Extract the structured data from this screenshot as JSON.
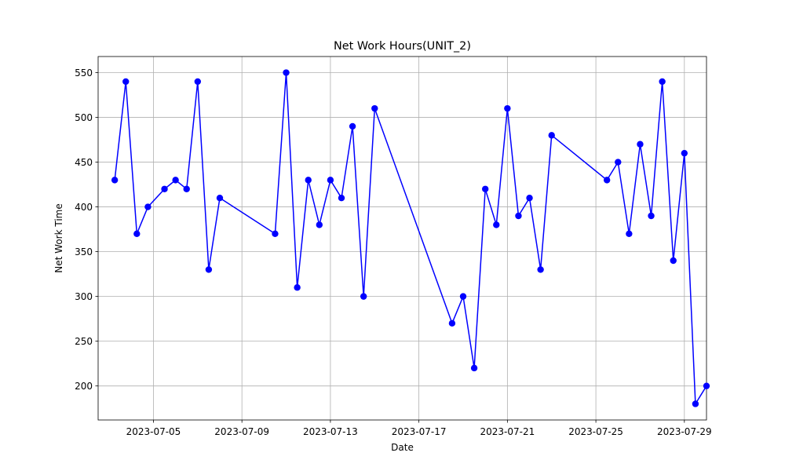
{
  "chart_data": {
    "type": "line",
    "title": "Net Work Hours(UNIT_2)",
    "xlabel": "Date",
    "ylabel": "Net Work Time",
    "x_type": "date",
    "xlim": [
      "2023-07-02T12:00",
      "2023-07-30T00:00"
    ],
    "ylim": [
      162,
      568
    ],
    "x_ticks": [
      "2023-07-05",
      "2023-07-09",
      "2023-07-13",
      "2023-07-17",
      "2023-07-21",
      "2023-07-25",
      "2023-07-29"
    ],
    "y_ticks": [
      200,
      250,
      300,
      350,
      400,
      450,
      500,
      550
    ],
    "grid": true,
    "legend": "none",
    "colors": {
      "series": "#0000ff"
    },
    "series": [
      {
        "marker": "circle",
        "points": [
          {
            "x": "2023-07-03T06:00",
            "y": 430
          },
          {
            "x": "2023-07-03T18:00",
            "y": 540
          },
          {
            "x": "2023-07-04T06:00",
            "y": 370
          },
          {
            "x": "2023-07-04T18:00",
            "y": 400
          },
          {
            "x": "2023-07-05T12:00",
            "y": 420
          },
          {
            "x": "2023-07-06T00:00",
            "y": 430
          },
          {
            "x": "2023-07-06T12:00",
            "y": 420
          },
          {
            "x": "2023-07-07T00:00",
            "y": 540
          },
          {
            "x": "2023-07-07T12:00",
            "y": 330
          },
          {
            "x": "2023-07-08T00:00",
            "y": 410
          },
          {
            "x": "2023-07-10T12:00",
            "y": 370
          },
          {
            "x": "2023-07-11T00:00",
            "y": 550
          },
          {
            "x": "2023-07-11T12:00",
            "y": 310
          },
          {
            "x": "2023-07-12T00:00",
            "y": 430
          },
          {
            "x": "2023-07-12T12:00",
            "y": 380
          },
          {
            "x": "2023-07-13T00:00",
            "y": 430
          },
          {
            "x": "2023-07-13T12:00",
            "y": 410
          },
          {
            "x": "2023-07-14T00:00",
            "y": 490
          },
          {
            "x": "2023-07-14T12:00",
            "y": 300
          },
          {
            "x": "2023-07-15T00:00",
            "y": 510
          },
          {
            "x": "2023-07-18T12:00",
            "y": 270
          },
          {
            "x": "2023-07-19T00:00",
            "y": 300
          },
          {
            "x": "2023-07-19T12:00",
            "y": 220
          },
          {
            "x": "2023-07-20T00:00",
            "y": 420
          },
          {
            "x": "2023-07-20T12:00",
            "y": 380
          },
          {
            "x": "2023-07-21T00:00",
            "y": 510
          },
          {
            "x": "2023-07-21T12:00",
            "y": 390
          },
          {
            "x": "2023-07-22T00:00",
            "y": 410
          },
          {
            "x": "2023-07-22T12:00",
            "y": 330
          },
          {
            "x": "2023-07-23T00:00",
            "y": 480
          },
          {
            "x": "2023-07-25T12:00",
            "y": 430
          },
          {
            "x": "2023-07-26T00:00",
            "y": 450
          },
          {
            "x": "2023-07-26T12:00",
            "y": 370
          },
          {
            "x": "2023-07-27T00:00",
            "y": 470
          },
          {
            "x": "2023-07-27T12:00",
            "y": 390
          },
          {
            "x": "2023-07-28T00:00",
            "y": 540
          },
          {
            "x": "2023-07-28T12:00",
            "y": 340
          },
          {
            "x": "2023-07-29T00:00",
            "y": 460
          },
          {
            "x": "2023-07-29T12:00",
            "y": 180
          },
          {
            "x": "2023-07-30T00:00",
            "y": 200
          }
        ]
      }
    ]
  }
}
